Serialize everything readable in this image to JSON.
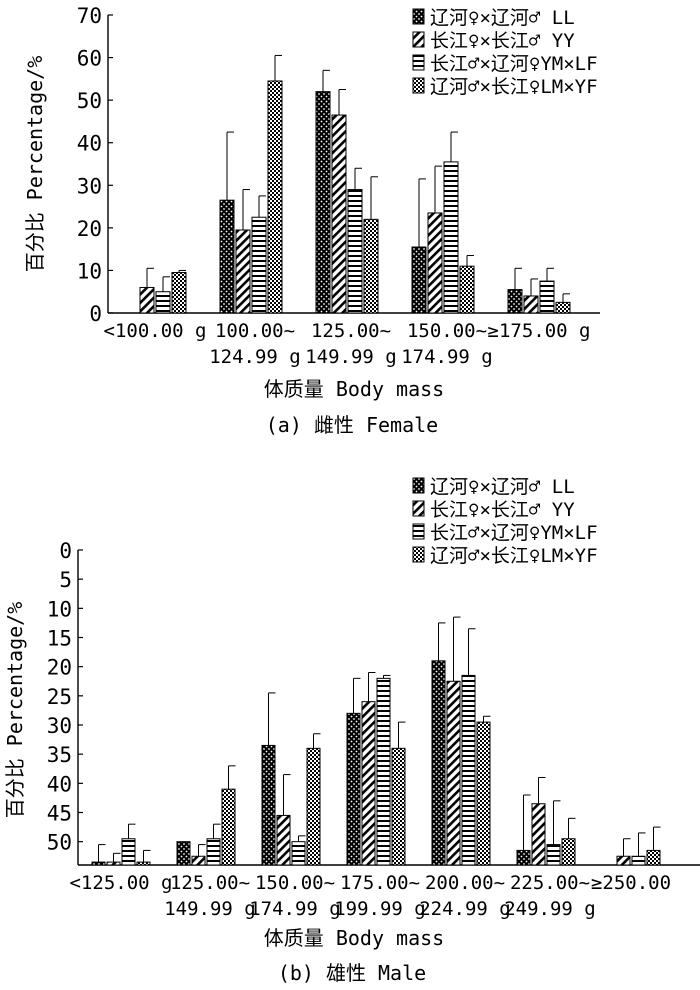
{
  "chart_data": [
    {
      "type": "bar",
      "caption": "(a)  雌性  Female",
      "xlabel": "体质量  Body mass",
      "ylabel": "百分比  Percentage/%",
      "ylim": [
        0,
        70
      ],
      "yticks": [
        "0",
        "10",
        "20",
        "30",
        "40",
        "50",
        "60",
        "70"
      ],
      "categories": [
        [
          "<100.00 g"
        ],
        [
          "100.00~",
          "124.99 g"
        ],
        [
          "125.00~",
          "149.99 g"
        ],
        [
          "150.00~",
          "174.99 g"
        ],
        [
          "≥175.00 g"
        ]
      ],
      "legend_position": "top-right",
      "series": [
        {
          "name": "辽河♀×辽河♂ LL",
          "values": [
            0,
            26.5,
            52,
            15.5,
            5.5
          ],
          "errors": [
            0,
            16,
            5,
            16,
            5
          ]
        },
        {
          "name": "长江♀×长江♂ YY",
          "values": [
            6,
            19.5,
            46.5,
            23.5,
            4
          ],
          "errors": [
            4.5,
            9.5,
            6,
            11,
            4
          ]
        },
        {
          "name": "长江♂×辽河♀YM×LF",
          "values": [
            5,
            22.5,
            29,
            35.5,
            7.5
          ],
          "errors": [
            3.5,
            5,
            5,
            7,
            3
          ]
        },
        {
          "name": "辽河♂×长江♀LM×YF",
          "values": [
            9.5,
            54.5,
            22,
            11,
            2.5
          ],
          "errors": [
            0.5,
            6,
            10,
            2.5,
            2
          ]
        }
      ]
    },
    {
      "type": "bar",
      "caption": "(b)  雄性  Male",
      "xlabel": "体质量  Body mass",
      "ylabel": "百分比  Percentage/%",
      "yticks": [
        "0",
        "5",
        "10",
        "15",
        "20",
        "25",
        "30",
        "35",
        "40",
        "45",
        "50"
      ],
      "categories": [
        [
          "<125.00 g"
        ],
        [
          "125.00~",
          "149.99 g"
        ],
        [
          "150.00~",
          "174.99 g"
        ],
        [
          "175.00~",
          "199.99 g"
        ],
        [
          "200.00~",
          "224.99 g"
        ],
        [
          "225.00~",
          "249.99 g"
        ],
        [
          "≥250.00"
        ]
      ],
      "legend_position": "top-right",
      "series": [
        {
          "name": "辽河♀×辽河♂ LL",
          "values": [
            -3.5,
            0,
            16.5,
            22,
            31,
            -1.5,
            null
          ],
          "errors": [
            3,
            0,
            9,
            6,
            6.5,
            9.5,
            0
          ]
        },
        {
          "name": "长江♀×长江♂ YY",
          "values": [
            -3.5,
            -2.5,
            4.5,
            24,
            27.5,
            6.5,
            -2.5
          ],
          "errors": [
            1.5,
            2,
            7,
            5,
            11,
            4.5,
            3
          ]
        },
        {
          "name": "长江♂×辽河♀YM×LF",
          "values": [
            0.5,
            0.5,
            0,
            28,
            28.5,
            -0.5,
            -2.5
          ],
          "errors": [
            2.5,
            2.5,
            1,
            0.5,
            8,
            7.5,
            4
          ]
        },
        {
          "name": "辽河♂×长江♀LM×YF",
          "values": [
            -3.5,
            9,
            16,
            16,
            20.5,
            0.5,
            -1.5
          ],
          "errors": [
            2,
            4,
            2.5,
            4.5,
            1,
            3.5,
            4
          ]
        }
      ]
    }
  ]
}
